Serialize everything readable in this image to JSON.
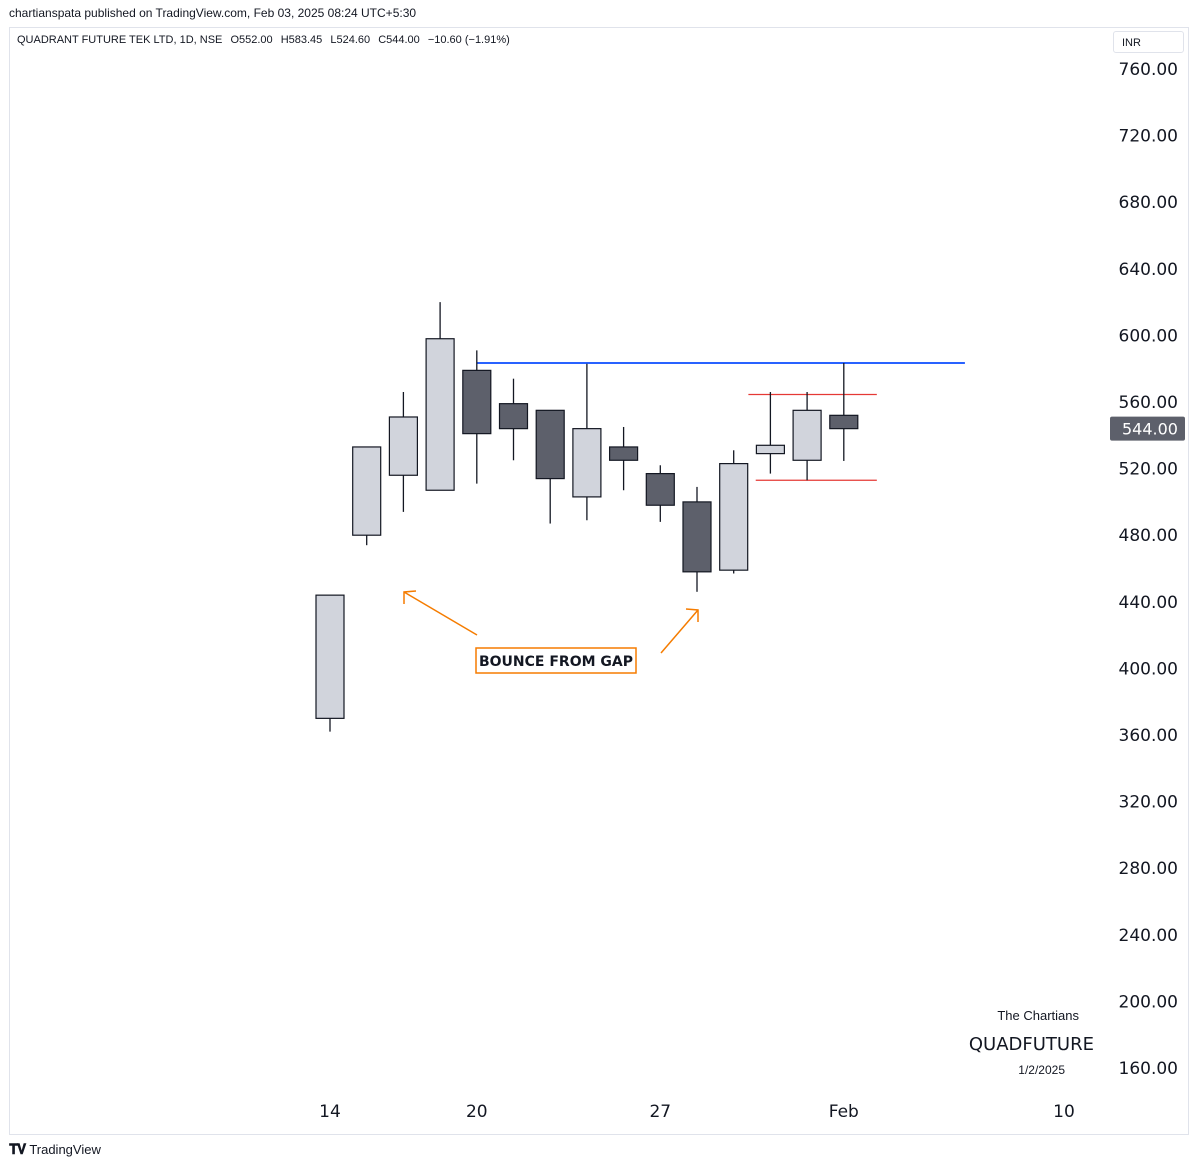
{
  "header": {
    "published_by": "chartianspata published on TradingView.com, Feb 03, 2025 08:24 UTC+5:30"
  },
  "legend": {
    "symbol": "QUADRANT FUTURE TEK LTD, 1D, NSE",
    "open": "O552.00",
    "high": "H583.45",
    "low": "L524.60",
    "close": "C544.00",
    "change": "−10.60 (−1.91%)"
  },
  "currency": "INR",
  "watermark": {
    "line1": "The Chartians",
    "line2": "QUADFUTURE",
    "line3": "1/2/2025"
  },
  "footer": {
    "brand": "TradingView",
    "logo_icon": "tradingview-logo-icon"
  },
  "colors": {
    "up_body": "#d1d4dc",
    "down_body": "#5d606b",
    "blue_line": "#2962ff",
    "red_line": "#e53935",
    "annotation": "#f57c00",
    "last_price_bg": "#5d606b"
  },
  "chart_data": {
    "type": "candlestick",
    "ylim": [
      160,
      760
    ],
    "y_ticks": [
      "760.00",
      "720.00",
      "680.00",
      "640.00",
      "600.00",
      "560.00",
      "520.00",
      "480.00",
      "440.00",
      "400.00",
      "360.00",
      "320.00",
      "280.00",
      "240.00",
      "200.00",
      "160.00"
    ],
    "x_labels": [
      {
        "label": "14",
        "index": 0
      },
      {
        "label": "20",
        "index": 4
      },
      {
        "label": "27",
        "index": 9
      },
      {
        "label": "Feb",
        "index": 14
      },
      {
        "label": "10",
        "index": 20
      }
    ],
    "last_price": "544.00",
    "candles": [
      {
        "o": 370,
        "h": 444,
        "l": 362,
        "c": 444
      },
      {
        "o": 480,
        "h": 533,
        "l": 474,
        "c": 533
      },
      {
        "o": 516,
        "h": 566,
        "l": 494,
        "c": 551
      },
      {
        "o": 507,
        "h": 620,
        "l": 507,
        "c": 598
      },
      {
        "o": 579,
        "h": 591,
        "l": 511,
        "c": 541
      },
      {
        "o": 559,
        "h": 574,
        "l": 525,
        "c": 544
      },
      {
        "o": 555,
        "h": 555,
        "l": 487,
        "c": 514
      },
      {
        "o": 503,
        "h": 583,
        "l": 489,
        "c": 544
      },
      {
        "o": 533,
        "h": 545,
        "l": 507,
        "c": 525
      },
      {
        "o": 517,
        "h": 522,
        "l": 488,
        "c": 498
      },
      {
        "o": 500,
        "h": 509,
        "l": 446,
        "c": 458
      },
      {
        "o": 459,
        "h": 531,
        "l": 457,
        "c": 523
      },
      {
        "o": 529,
        "h": 566,
        "l": 517,
        "c": 534
      },
      {
        "o": 525,
        "h": 566,
        "l": 513,
        "c": 555
      },
      {
        "o": 552,
        "h": 583.45,
        "l": 524.6,
        "c": 544
      }
    ],
    "levels": [
      {
        "name": "resistance",
        "price": 583.45,
        "from": 4,
        "to": 17.3,
        "color": "blue"
      },
      {
        "name": "range-top",
        "price": 564.5,
        "from": 11.4,
        "to": 14.9,
        "color": "red"
      },
      {
        "name": "range-bottom",
        "price": 513,
        "from": 11.6,
        "to": 14.9,
        "color": "red"
      }
    ],
    "annotations": [
      {
        "text": "BOUNCE FROM GAP"
      }
    ]
  }
}
